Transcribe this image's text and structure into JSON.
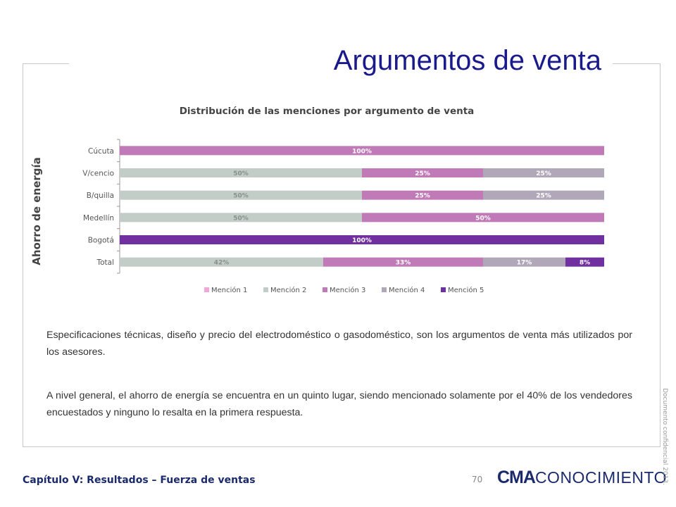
{
  "title": "Argumentos de venta",
  "side_label": "Ahorro de energía",
  "chart_data": {
    "type": "bar",
    "orientation": "horizontal",
    "stacked": true,
    "title": "Distribución de las menciones por argumento de venta",
    "categories": [
      "Cúcuta",
      "V/cencio",
      "B/quilla",
      "Medellín",
      "Bogotá",
      "Total"
    ],
    "series": [
      {
        "name": "Mención 1",
        "color": "#f0a8d8",
        "values": [
          0,
          0,
          0,
          0,
          0,
          0
        ]
      },
      {
        "name": "Mención 2",
        "color": "#c3cdc8",
        "values": [
          0,
          50,
          50,
          50,
          0,
          42
        ]
      },
      {
        "name": "Mención 3",
        "color": "#c07ab8",
        "values": [
          100,
          25,
          25,
          50,
          0,
          33
        ]
      },
      {
        "name": "Mención 4",
        "color": "#b0a8b8",
        "values": [
          0,
          25,
          25,
          0,
          0,
          17
        ]
      },
      {
        "name": "Mención 5",
        "color": "#7030a0",
        "values": [
          0,
          0,
          0,
          0,
          100,
          8
        ]
      }
    ],
    "data_labels": [
      [
        "",
        "",
        "100%",
        "",
        ""
      ],
      [
        "",
        "50%",
        "25%",
        "25%",
        ""
      ],
      [
        "",
        "50%",
        "25%",
        "25%",
        ""
      ],
      [
        "",
        "50%",
        "50%",
        "",
        ""
      ],
      [
        "",
        "",
        "",
        "",
        "100%"
      ],
      [
        "",
        "42%",
        "33%",
        "17%",
        "8%"
      ]
    ],
    "xlim": [
      0,
      100
    ],
    "legend_position": "bottom",
    "grid": false
  },
  "paragraphs": [
    "Especificaciones técnicas, diseño y precio del electrodoméstico o gasodoméstico, son los argumentos de venta más utilizados por los asesores.",
    "A nivel general, el ahorro de energía se encuentra en un quinto lugar, siendo mencionado solamente por el 40% de los vendedores encuestados y ninguno lo resalta en la primera respuesta."
  ],
  "footer": {
    "chapter": "Capítulo V: Resultados – Fuerza de ventas",
    "page_number": "70",
    "logo_bold": "CMA",
    "logo_regular": "CONOCIMIENTO",
    "confidential": "Documento confidencial 2013."
  }
}
